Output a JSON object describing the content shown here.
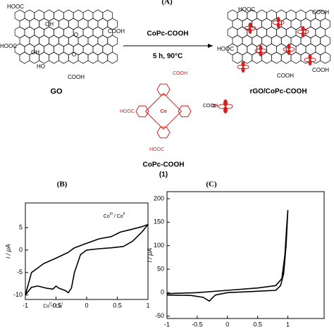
{
  "scheme": {
    "panel": "(A)",
    "go_label": "GO",
    "go_groups": [
      "HOOC",
      "OH",
      "O",
      "COOH",
      "HOOC",
      "OH",
      "O",
      "HO",
      "COOH"
    ],
    "reagent": "CoPc-COOH",
    "conditions": "5 h, 90°C",
    "product_label": "rGO/CoPc-COOH",
    "product_groups": [
      "HOOC",
      "COOH",
      "HOOC",
      "COOH",
      "COOH"
    ],
    "molecule_groups": [
      "COOH",
      "HOOC",
      "COOH",
      "HOOC"
    ],
    "molecule_center": "Co",
    "molecule_name": "CoPc-COOH",
    "molecule_number": "(1)",
    "equals": "="
  },
  "chart_data": [
    {
      "type": "line",
      "panel": "(B)",
      "y_label": "i / μA",
      "xlim": [
        -1,
        1
      ],
      "xticks": [
        -1,
        -0.5,
        0,
        0.5,
        1
      ],
      "ylim": [
        -11,
        10.5
      ],
      "yticks": [
        -10,
        -5,
        0,
        5
      ],
      "x": [
        -1,
        -0.9,
        -0.7,
        -0.5,
        -0.3,
        -0.2,
        0,
        0.2,
        0.4,
        0.55,
        0.7,
        0.9,
        1,
        0.9,
        0.75,
        0.6,
        0.4,
        0.2,
        0,
        -0.1,
        -0.2,
        -0.25,
        -0.3,
        -0.35,
        -0.45,
        -0.5,
        -0.55,
        -0.65,
        -0.8,
        -0.9,
        -1
      ],
      "series": [
        {
          "color": "#000000",
          "values": [
            -10,
            -5,
            -3,
            -1.8,
            -0.5,
            0.5,
            1.5,
            2.5,
            3,
            4,
            4.5,
            5.2,
            5.7,
            4,
            2,
            0.8,
            0.5,
            0.3,
            0,
            -1,
            -5,
            -8.5,
            -9.5,
            -9,
            -8.5,
            -8,
            -8.7,
            -8.5,
            -8,
            -8.3,
            -10
          ]
        }
      ],
      "annotations": [
        {
          "parts": [
            "Co",
            "III",
            " / Co",
            "II"
          ],
          "x": 0.45,
          "y": 7.5
        },
        {
          "parts": [
            "Co",
            "II",
            " / Co",
            "I"
          ],
          "x": -0.55,
          "y": -12.5
        }
      ]
    },
    {
      "type": "line",
      "panel": "(C)",
      "y_label": "i / μA",
      "xlim": [
        -1,
        1.6
      ],
      "xticks": [
        -1,
        -0.5,
        0,
        0.5,
        1
      ],
      "ylim": [
        -55,
        215
      ],
      "yticks": [
        -50,
        0,
        50,
        100,
        150,
        200
      ],
      "x": [
        -1,
        -0.5,
        0,
        0.5,
        0.8,
        0.9,
        0.95,
        0.98,
        1,
        0.97,
        0.93,
        0.88,
        0.8,
        0.5,
        0,
        -0.2,
        -0.3,
        -0.4,
        -0.6,
        -1
      ],
      "series": [
        {
          "color": "#000000",
          "values": [
            -2,
            0,
            5,
            10,
            15,
            30,
            80,
            140,
            175,
            100,
            40,
            15,
            5,
            3,
            0,
            -5,
            -18,
            -10,
            -6,
            -5
          ]
        }
      ]
    }
  ]
}
